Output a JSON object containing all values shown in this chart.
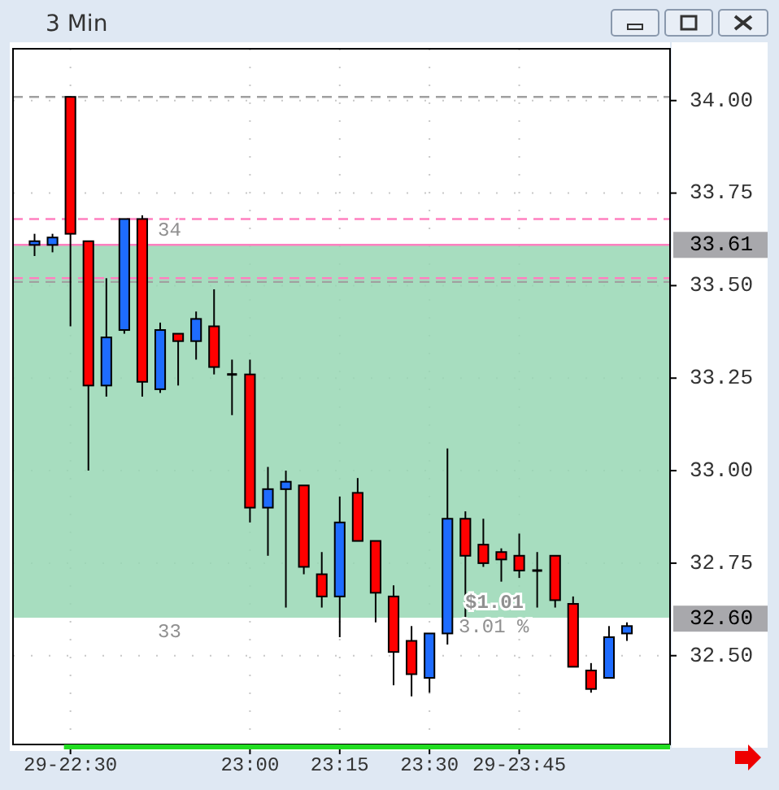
{
  "chart_data": {
    "type": "candlestick",
    "title": "3 Min",
    "x": [
      22.4,
      22.45,
      22.5,
      22.55,
      22.6,
      22.65,
      22.7,
      22.75,
      22.8,
      22.85,
      22.9,
      22.95,
      23,
      23.05,
      23.1,
      23.15,
      23.2,
      23.25,
      23.3,
      23.35,
      23.4,
      23.45,
      23.5,
      23.55,
      23.6,
      23.65,
      23.7,
      23.75,
      23.8,
      23.85,
      23.9,
      23.95,
      24,
      24.05
    ],
    "ohlc": [
      [
        33.61,
        33.64,
        33.58,
        33.62
      ],
      [
        33.61,
        33.64,
        33.59,
        33.63
      ],
      [
        34.01,
        34.01,
        33.39,
        33.64
      ],
      [
        33.62,
        33.62,
        33.0,
        33.23
      ],
      [
        33.23,
        33.52,
        33.2,
        33.36
      ],
      [
        33.38,
        33.68,
        33.37,
        33.68
      ],
      [
        33.68,
        33.69,
        33.2,
        33.24
      ],
      [
        33.22,
        33.4,
        33.21,
        33.38
      ],
      [
        33.37,
        33.37,
        33.23,
        33.35
      ],
      [
        33.35,
        33.43,
        33.3,
        33.41
      ],
      [
        33.39,
        33.49,
        33.26,
        33.28
      ],
      [
        33.26,
        33.3,
        33.15,
        33.26
      ],
      [
        33.26,
        33.3,
        32.86,
        32.9
      ],
      [
        32.9,
        33.01,
        32.77,
        32.95
      ],
      [
        32.95,
        33.0,
        32.63,
        32.97
      ],
      [
        32.96,
        32.96,
        32.72,
        32.74
      ],
      [
        32.72,
        32.78,
        32.63,
        32.66
      ],
      [
        32.66,
        32.93,
        32.55,
        32.86
      ],
      [
        32.94,
        32.98,
        32.81,
        32.81
      ],
      [
        32.81,
        32.81,
        32.59,
        32.67
      ],
      [
        32.66,
        32.69,
        32.42,
        32.51
      ],
      [
        32.54,
        32.58,
        32.39,
        32.45
      ],
      [
        32.44,
        32.56,
        32.4,
        32.56
      ],
      [
        32.56,
        33.06,
        32.53,
        32.87
      ],
      [
        32.87,
        32.89,
        32.6,
        32.77
      ],
      [
        32.8,
        32.87,
        32.74,
        32.75
      ],
      [
        32.78,
        32.79,
        32.7,
        32.76
      ],
      [
        32.77,
        32.83,
        32.71,
        32.73
      ],
      [
        32.73,
        32.78,
        32.63,
        32.73
      ],
      [
        32.77,
        32.77,
        32.63,
        32.65
      ],
      [
        32.64,
        32.66,
        32.47,
        32.47
      ],
      [
        32.46,
        32.48,
        32.4,
        32.41
      ],
      [
        32.44,
        32.58,
        32.44,
        32.55
      ],
      [
        32.56,
        32.59,
        32.54,
        32.58
      ]
    ],
    "colors": [
      "#1e6cff",
      "#1e6cff",
      "#ff0000",
      "#ff0000",
      "#1e6cff",
      "#1e6cff",
      "#ff0000",
      "#1e6cff",
      "#ff0000",
      "#1e6cff",
      "#ff0000",
      "#000000",
      "#ff0000",
      "#1e6cff",
      "#1e6cff",
      "#ff0000",
      "#ff0000",
      "#1e6cff",
      "#ff0000",
      "#ff0000",
      "#ff0000",
      "#ff0000",
      "#1e6cff",
      "#1e6cff",
      "#ff0000",
      "#ff0000",
      "#ff0000",
      "#ff0000",
      "#000000",
      "#ff0000",
      "#ff0000",
      "#ff0000",
      "#1e6cff",
      "#1e6cff"
    ],
    "xlim": [
      22.34,
      24.17
    ],
    "xticks": [
      {
        "value": 22.5,
        "label": "29-22:30"
      },
      {
        "value": 23,
        "label": "23:00"
      },
      {
        "value": 23.25,
        "label": "23:15"
      },
      {
        "value": 23.5,
        "label": "23:30"
      },
      {
        "value": 23.75,
        "label": "29-23:45"
      }
    ],
    "ylim": [
      32.26,
      34.14
    ],
    "yticks": [
      {
        "value": 34,
        "label": "34.00"
      },
      33.75,
      {
        "value": 33.5,
        "label": "33.50"
      },
      33.25,
      {
        "value": 33,
        "label": "33.00"
      },
      32.75,
      {
        "value": 32.5,
        "label": "32.50"
      }
    ],
    "grid": true,
    "ref_lines": [
      {
        "axis": "y",
        "value": 34.01,
        "color": "#a0a0a0",
        "line_style": "dashed"
      },
      {
        "axis": "y",
        "value": 33.68,
        "color": "#ff80c0",
        "line_style": "dashed"
      },
      {
        "axis": "y",
        "value": 33.61,
        "color": "#ff80c0",
        "line_style": "solid",
        "label": "33.61"
      },
      {
        "axis": "y",
        "value": 33.52,
        "color": "#ff80c0",
        "line_style": "dashed"
      },
      {
        "axis": "y",
        "value": 33.51,
        "color": "#a0a0a0",
        "line_style": "dashed"
      },
      {
        "axis": "y",
        "value": 32.6,
        "color": "#ffffff",
        "line_style": "solid",
        "label": "32.60"
      }
    ],
    "bands": [
      {
        "axis": "y",
        "from": 32.6,
        "to": 33.61,
        "color": "#98d7b4"
      }
    ],
    "annotations": [
      "34",
      "33",
      "$1.01",
      "3.01 %"
    ]
  }
}
